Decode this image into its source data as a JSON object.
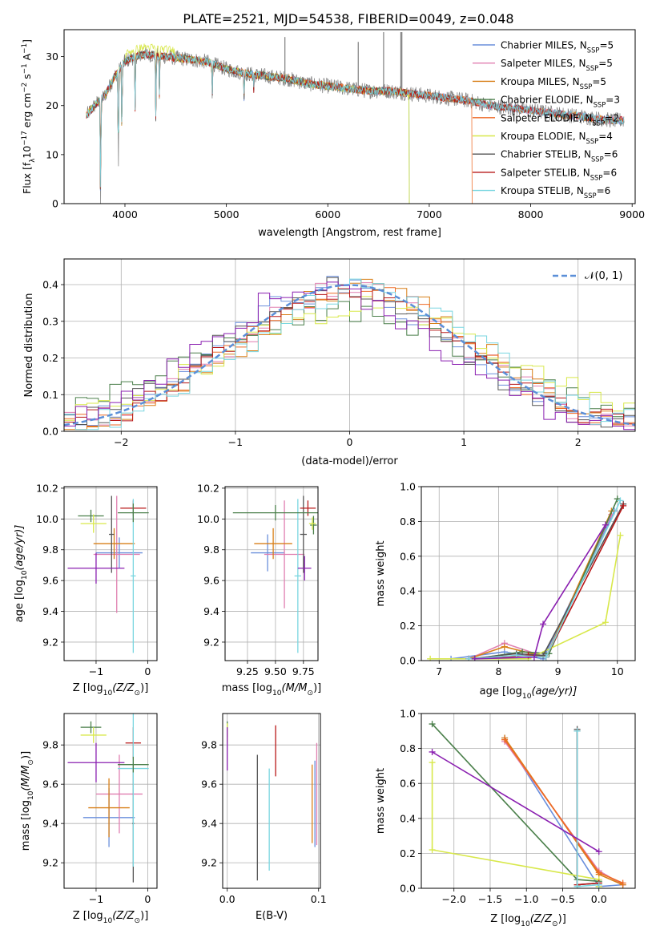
{
  "title": "PLATE=2521, MJD=54538, FIBERID=0049, z=0.048",
  "colors": {
    "s1": "#6a8fdc",
    "s2": "#e07fb0",
    "s3": "#d87f18",
    "s4": "#4a7f4a",
    "s5": "#ee6a26",
    "s6": "#d8e84a",
    "s7": "#555555",
    "s8": "#b81818",
    "s9": "#7ad6e0",
    "purple": "#8a1fb0",
    "data": "#7f7f7f",
    "gauss": "#5b8fd8"
  },
  "chart_data": [
    {
      "id": "spectrum",
      "type": "line",
      "title": "PLATE=2521, MJD=54538, FIBERID=0049, z=0.048",
      "xlabel": "wavelength [Angstrom, rest frame]",
      "ylabel_main": "Flux [f",
      "ylabel_sub": "λ",
      "ylabel_rest": "10",
      "ylabel_sup": "−17",
      "ylabel_end": " erg cm",
      "ylabel_sup2": "−2",
      "ylabel_s": " s",
      "ylabel_sup3": "−1",
      "ylabel_A": " A",
      "ylabel_sup4": "−1",
      "ylabel_close": "]",
      "xlim": [
        3400,
        9030
      ],
      "ylim": [
        0,
        35.5
      ],
      "xticks": [
        "4000",
        "5000",
        "6000",
        "7000",
        "8000",
        "9000"
      ],
      "xtick_values": [
        4000,
        5000,
        6000,
        7000,
        8000,
        9000
      ],
      "yticks": [
        "0",
        "10",
        "20",
        "30"
      ],
      "ytick_values": [
        0,
        10,
        20,
        30
      ],
      "grid": false,
      "legend_position": "top-right",
      "legend": [
        {
          "main": "Chabrier MILES, N",
          "sub": "SSP",
          "end": "=5"
        },
        {
          "main": "Salpeter MILES, N",
          "sub": "SSP",
          "end": "=5"
        },
        {
          "main": "Kroupa MILES, N",
          "sub": "SSP",
          "end": "=5"
        },
        {
          "main": "Chabrier ELODIE, N",
          "sub": "SSP",
          "end": "=3"
        },
        {
          "main": "Salpeter ELODIE, N",
          "sub": "SSP",
          "end": "=2"
        },
        {
          "main": "Kroupa ELODIE, N",
          "sub": "SSP",
          "end": "=4"
        },
        {
          "main": "Chabrier STELIB, N",
          "sub": "SSP",
          "end": "=6"
        },
        {
          "main": "Salpeter STELIB, N",
          "sub": "SSP",
          "end": "=6"
        },
        {
          "main": "Kroupa STELIB, N",
          "sub": "SSP",
          "end": "=6"
        }
      ],
      "continuum": {
        "x": [
          3620,
          3700,
          3800,
          3900,
          4000,
          4100,
          4200,
          4400,
          4600,
          4800,
          5000,
          5200,
          5400,
          5600,
          5800,
          6000,
          6200,
          6400,
          6600,
          6800,
          7000,
          7200,
          7400,
          7600,
          7800,
          8000,
          8200,
          8400,
          8600,
          8800,
          8900
        ],
        "y": [
          18,
          20,
          22,
          26,
          29,
          30,
          30.5,
          30,
          29.5,
          29,
          27.5,
          26.5,
          26,
          25.5,
          24.5,
          24,
          23.5,
          23,
          23,
          22.5,
          22,
          21.5,
          21,
          20,
          19.5,
          19,
          18.5,
          18,
          17.5,
          17,
          17
        ]
      },
      "absorption_lines": [
        {
          "x": 3760,
          "depth": 22
        },
        {
          "x": 3935,
          "depth": 20
        },
        {
          "x": 3970,
          "depth": 14
        },
        {
          "x": 4100,
          "depth": 10
        },
        {
          "x": 4305,
          "depth": 13
        },
        {
          "x": 4340,
          "depth": 8
        },
        {
          "x": 4861,
          "depth": 6
        },
        {
          "x": 5175,
          "depth": 5
        },
        {
          "x": 5270,
          "depth": 3
        }
      ],
      "sky_spikes": [
        {
          "x": 5320,
          "top": 27
        },
        {
          "x": 5577,
          "top": 34
        },
        {
          "x": 6300,
          "top": 33
        },
        {
          "x": 6550,
          "top": 35
        },
        {
          "x": 6720,
          "top": 35
        },
        {
          "x": 6730,
          "top": 35
        }
      ],
      "cutoffs": [
        {
          "series": "Chabrier ELODIE, N=3",
          "x": 6800
        },
        {
          "series": "Kroupa ELODIE, N=4",
          "x": 6800
        },
        {
          "series": "Salpeter ELODIE, N=2",
          "x": 7420
        }
      ]
    },
    {
      "id": "residuals",
      "type": "step",
      "xlabel": "(data-model)/error",
      "ylabel": "Normed distribution",
      "xlim": [
        -2.5,
        2.5
      ],
      "ylim": [
        0,
        0.47
      ],
      "xticks": [
        "−2",
        "−1",
        "0",
        "1",
        "2"
      ],
      "xtick_values": [
        -2,
        -1,
        0,
        1,
        2
      ],
      "yticks": [
        "0.0",
        "0.1",
        "0.2",
        "0.3",
        "0.4"
      ],
      "ytick_values": [
        0,
        0.1,
        0.2,
        0.3,
        0.4
      ],
      "grid": true,
      "legend_position": "top-right",
      "gauss_label": "𝒩(0, 1)",
      "bin_width": 0.1,
      "typical_profile": {
        "x": [
          -2.5,
          -2.0,
          -1.5,
          -1.0,
          -0.5,
          0.0,
          0.5,
          1.0,
          1.5,
          2.0,
          2.5
        ],
        "y": [
          0.02,
          0.05,
          0.13,
          0.24,
          0.35,
          0.4,
          0.35,
          0.24,
          0.13,
          0.05,
          0.02
        ]
      }
    },
    {
      "id": "age-vs-Z",
      "type": "errorbar",
      "xlabel_main": "Z [log",
      "xlabel_sub": "10",
      "xlabel_end": "(Z/Z",
      "xlabel_sub2": "⊙",
      "xlabel_close": ")]",
      "ylabel_main": "age  [log",
      "ylabel_sub": "10",
      "ylabel_end": "(age/yr)]",
      "xlim": [
        -1.62,
        0.18
      ],
      "ylim": [
        9.08,
        10.21
      ],
      "xticks": [
        "−1",
        "0"
      ],
      "xtick_values": [
        -1,
        0
      ],
      "yticks": [
        "9.2",
        "9.4",
        "9.6",
        "9.8",
        "10.0",
        "10.2"
      ],
      "ytick_values": [
        9.2,
        9.4,
        9.6,
        9.8,
        10.0,
        10.2
      ],
      "grid": true,
      "points": [
        {
          "c": "s1",
          "x": -0.55,
          "y": 9.78,
          "xerr": 0.45,
          "yerr": 0.1
        },
        {
          "c": "s2",
          "x": -0.6,
          "y": 9.77,
          "xerr": 0.45,
          "yerr": 0.38
        },
        {
          "c": "s3",
          "x": -0.65,
          "y": 9.84,
          "xerr": 0.4,
          "yerr": 0.1
        },
        {
          "c": "s4",
          "x": -1.1,
          "y": 10.02,
          "xerr": 0.25,
          "yerr": 0.04
        },
        {
          "c": "s6",
          "x": -1.05,
          "y": 9.97,
          "xerr": 0.25,
          "yerr": 0.06
        },
        {
          "c": "s7",
          "x": -0.7,
          "y": 9.9,
          "xerr": 0.05,
          "yerr": 0.25
        },
        {
          "c": "s8",
          "x": -0.28,
          "y": 10.07,
          "xerr": 0.25,
          "yerr": 0.05
        },
        {
          "c": "s9",
          "x": -0.28,
          "y": 9.63,
          "xerr": 0.05,
          "yerr": 0.5
        },
        {
          "c": "purple",
          "x": -1.0,
          "y": 9.68,
          "xerr": 0.55,
          "yerr": 0.1
        },
        {
          "c": "s4",
          "x": -0.28,
          "y": 10.04,
          "xerr": 0.3,
          "yerr": 0.06
        }
      ]
    },
    {
      "id": "age-vs-mass",
      "type": "errorbar",
      "xlabel_main": "mass [log",
      "xlabel_sub": "10",
      "xlabel_end": "(M/M",
      "xlabel_sub2": "⊙",
      "xlabel_close": ")]",
      "xlim": [
        9.05,
        9.88
      ],
      "ylim": [
        9.08,
        10.21
      ],
      "xticks": [
        "9.25",
        "9.50",
        "9.75"
      ],
      "xtick_values": [
        9.25,
        9.5,
        9.75
      ],
      "yticks": [
        "9.2",
        "9.4",
        "9.6",
        "9.8",
        "10.0",
        "10.2"
      ],
      "ytick_values": [
        9.2,
        9.4,
        9.6,
        9.8,
        10.0,
        10.2
      ],
      "grid": true,
      "points": [
        {
          "c": "s1",
          "x": 9.43,
          "y": 9.78,
          "xerr": 0.15,
          "yerr": 0.12
        },
        {
          "c": "s2",
          "x": 9.58,
          "y": 9.77,
          "xerr": 0.18,
          "yerr": 0.35
        },
        {
          "c": "s3",
          "x": 9.48,
          "y": 9.84,
          "xerr": 0.17,
          "yerr": 0.1
        },
        {
          "c": "s4",
          "x": 9.84,
          "y": 9.96,
          "xerr": 0.03,
          "yerr": 0.06
        },
        {
          "c": "s6",
          "x": 9.83,
          "y": 9.97,
          "xerr": 0.03,
          "yerr": 0.04
        },
        {
          "c": "s7",
          "x": 9.75,
          "y": 9.9,
          "xerr": 0.03,
          "yerr": 0.25
        },
        {
          "c": "s8",
          "x": 9.79,
          "y": 10.07,
          "xerr": 0.07,
          "yerr": 0.05
        },
        {
          "c": "s9",
          "x": 9.7,
          "y": 9.63,
          "xerr": 0.03,
          "yerr": 0.5
        },
        {
          "c": "purple",
          "x": 9.76,
          "y": 9.68,
          "xerr": 0.06,
          "yerr": 0.08
        },
        {
          "c": "s4",
          "x": 9.5,
          "y": 10.04,
          "xerr": 0.38,
          "yerr": 0.05
        }
      ]
    },
    {
      "id": "weight-vs-age",
      "type": "line",
      "xlabel_main": "age  [log",
      "xlabel_sub": "10",
      "xlabel_end": "(age/yr)]",
      "ylabel": "mass weight",
      "xlim": [
        6.7,
        10.3
      ],
      "ylim": [
        0,
        1.0
      ],
      "xticks": [
        "7",
        "8",
        "9",
        "10"
      ],
      "xtick_values": [
        7,
        8,
        9,
        10
      ],
      "yticks": [
        "0.0",
        "0.2",
        "0.4",
        "0.6",
        "0.8",
        "1.0"
      ],
      "ytick_values": [
        0,
        0.2,
        0.4,
        0.6,
        0.8,
        1.0
      ],
      "grid": true,
      "series": [
        {
          "c": "s1",
          "x": [
            7.2,
            8.1,
            8.75,
            9.95
          ],
          "y": [
            0.01,
            0.05,
            0.01,
            0.86
          ]
        },
        {
          "c": "s2",
          "x": [
            7.5,
            8.1,
            8.8,
            9.9
          ],
          "y": [
            0.01,
            0.1,
            0.02,
            0.84
          ]
        },
        {
          "c": "s3",
          "x": [
            7.5,
            8.1,
            8.8,
            9.9
          ],
          "y": [
            0.01,
            0.08,
            0.02,
            0.86
          ]
        },
        {
          "c": "s4",
          "x": [
            7.6,
            8.4,
            8.85,
            10.0
          ],
          "y": [
            0.01,
            0.05,
            0.04,
            0.93
          ]
        },
        {
          "c": "s6",
          "x": [
            6.85,
            8.5,
            9.8,
            10.05
          ],
          "y": [
            0.01,
            0.01,
            0.22,
            0.72
          ]
        },
        {
          "c": "s7",
          "x": [
            7.5,
            8.3,
            8.75,
            10.1
          ],
          "y": [
            0.01,
            0.04,
            0.03,
            0.9
          ]
        },
        {
          "c": "s8",
          "x": [
            7.5,
            8.5,
            8.8,
            10.1
          ],
          "y": [
            0.01,
            0.03,
            0.02,
            0.89
          ]
        },
        {
          "c": "s9",
          "x": [
            7.5,
            8.3,
            8.8,
            10.05
          ],
          "y": [
            0.01,
            0.03,
            0.02,
            0.92
          ]
        },
        {
          "c": "purple",
          "x": [
            7.6,
            8.6,
            8.75,
            9.8
          ],
          "y": [
            0.01,
            0.02,
            0.21,
            0.78
          ]
        }
      ]
    },
    {
      "id": "mass-vs-Z",
      "type": "errorbar",
      "xlabel_main": "Z [log",
      "xlabel_sub": "10",
      "xlabel_end": "(Z/Z",
      "xlabel_sub2": "⊙",
      "xlabel_close": ")]",
      "ylabel_main": "mass [log",
      "ylabel_sub": "10",
      "ylabel_end": "(M/M",
      "ylabel_sub2": "⊙",
      "ylabel_close": ")]",
      "xlim": [
        -1.62,
        0.18
      ],
      "ylim": [
        9.07,
        9.96
      ],
      "xticks": [
        "−1",
        "0"
      ],
      "xtick_values": [
        -1,
        0
      ],
      "yticks": [
        "9.2",
        "9.4",
        "9.6",
        "9.8"
      ],
      "ytick_values": [
        9.2,
        9.4,
        9.6,
        9.8
      ],
      "grid": true,
      "points": [
        {
          "c": "s1",
          "x": -0.75,
          "y": 9.43,
          "xerr": 0.5,
          "yerr": 0.15
        },
        {
          "c": "s2",
          "x": -0.55,
          "y": 9.55,
          "xerr": 0.45,
          "yerr": 0.2
        },
        {
          "c": "s3",
          "x": -0.75,
          "y": 9.48,
          "xerr": 0.4,
          "yerr": 0.15
        },
        {
          "c": "s4",
          "x": -1.1,
          "y": 9.89,
          "xerr": 0.2,
          "yerr": 0.03
        },
        {
          "c": "s6",
          "x": -1.05,
          "y": 9.85,
          "xerr": 0.25,
          "yerr": 0.04
        },
        {
          "c": "s7",
          "x": -0.28,
          "y": 9.4,
          "xerr": 0.02,
          "yerr": 0.3
        },
        {
          "c": "s8",
          "x": -0.28,
          "y": 9.81,
          "xerr": 0.15,
          "yerr": 0.08
        },
        {
          "c": "s9",
          "x": -0.28,
          "y": 9.68,
          "xerr": 0.3,
          "yerr": 0.5
        },
        {
          "c": "purple",
          "x": -1.0,
          "y": 9.71,
          "xerr": 0.55,
          "yerr": 0.1
        },
        {
          "c": "s4",
          "x": -0.28,
          "y": 9.7,
          "xerr": 0.3,
          "yerr": 0.04
        }
      ]
    },
    {
      "id": "mass-vs-ebv",
      "type": "errorbar",
      "xlabel": "E(B-V)",
      "xlim": [
        -0.005,
        0.102
      ],
      "ylim": [
        9.07,
        9.96
      ],
      "xticks": [
        "0.0",
        "0.1"
      ],
      "xtick_values": [
        0,
        0.1
      ],
      "yticks": [
        "9.2",
        "9.4",
        "9.6",
        "9.8"
      ],
      "ytick_values": [
        9.2,
        9.4,
        9.6,
        9.8
      ],
      "grid": true,
      "points": [
        {
          "c": "s7",
          "x": 0.033,
          "y": 9.43,
          "yerr": 0.32
        },
        {
          "c": "s9",
          "x": 0.046,
          "y": 9.42,
          "yerr": 0.26
        },
        {
          "c": "s8",
          "x": 0.053,
          "y": 9.77,
          "yerr": 0.13
        },
        {
          "c": "s3",
          "x": 0.093,
          "y": 9.5,
          "yerr": 0.2
        },
        {
          "c": "s1",
          "x": 0.096,
          "y": 9.5,
          "yerr": 0.22
        },
        {
          "c": "s2",
          "x": 0.098,
          "y": 9.55,
          "yerr": 0.26
        },
        {
          "c": "s4",
          "x": 0.0,
          "y": 9.88,
          "yerr": 0.04
        },
        {
          "c": "s6",
          "x": 0.0,
          "y": 9.86,
          "yerr": 0.05
        },
        {
          "c": "purple",
          "x": 0.0,
          "y": 9.78,
          "yerr": 0.11
        }
      ]
    },
    {
      "id": "weight-vs-Z",
      "type": "line",
      "xlabel_main": "Z [log",
      "xlabel_sub": "10",
      "xlabel_end": "(Z/Z",
      "xlabel_sub2": "⊙",
      "xlabel_close": ")]",
      "ylabel": "mass weight",
      "xlim": [
        -2.45,
        0.5
      ],
      "ylim": [
        0,
        1.0
      ],
      "xticks": [
        "−2.0",
        "−1.5",
        "−1.0",
        "−0.5",
        "0.0"
      ],
      "xtick_values": [
        -2,
        -1.5,
        -1,
        -0.5,
        0
      ],
      "yticks": [
        "0.0",
        "0.2",
        "0.4",
        "0.6",
        "0.8",
        "1.0"
      ],
      "ytick_values": [
        0,
        0.2,
        0.4,
        0.6,
        0.8,
        1.0
      ],
      "grid": true,
      "series": [
        {
          "c": "s1",
          "x": [
            -1.3,
            0.0,
            0.33
          ],
          "y": [
            0.86,
            0.01,
            0.02
          ]
        },
        {
          "c": "s2",
          "x": [
            -1.3,
            0.0,
            0.33
          ],
          "y": [
            0.84,
            0.1,
            0.02
          ]
        },
        {
          "c": "s3",
          "x": [
            -1.3,
            0.0,
            0.33
          ],
          "y": [
            0.86,
            0.08,
            0.02
          ]
        },
        {
          "c": "s5",
          "x": [
            -1.3,
            0.0,
            0.33
          ],
          "y": [
            0.85,
            0.09,
            0.03
          ]
        },
        {
          "c": "s4",
          "x": [
            -2.3,
            -0.3,
            0.0
          ],
          "y": [
            0.94,
            0.05,
            0.04
          ]
        },
        {
          "c": "s6",
          "x": [
            -2.3,
            -2.3,
            0.0,
            0.0
          ],
          "y": [
            0.72,
            0.22,
            0.05,
            0.01
          ]
        },
        {
          "c": "s7",
          "x": [
            -0.3,
            -0.3,
            0.0
          ],
          "y": [
            0.91,
            0.02,
            0.03
          ]
        },
        {
          "c": "s8",
          "x": [
            -0.3,
            -0.3,
            0.0
          ],
          "y": [
            0.9,
            0.02,
            0.03
          ]
        },
        {
          "c": "s9",
          "x": [
            -0.3,
            -0.3,
            0.0
          ],
          "y": [
            0.9,
            0.01,
            0.02
          ]
        },
        {
          "c": "purple",
          "x": [
            -2.3,
            0.0
          ],
          "y": [
            0.78,
            0.21
          ]
        }
      ]
    }
  ]
}
